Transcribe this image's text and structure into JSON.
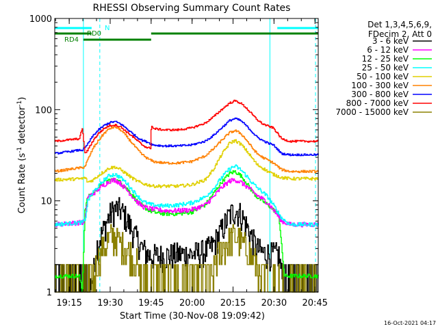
{
  "chart_data": {
    "type": "line",
    "title": "RHESSI Observing Summary Count Rates",
    "xlabel": "Start Time (30-Nov-08 19:09:42)",
    "ylabel_main": "Count Rate (s",
    "ylabel_sup1": "-1",
    "ylabel_mid": " detector",
    "ylabel_sup2": "-1",
    "ylabel_end": ")",
    "yscale": "log",
    "xlim": [
      0,
      96.5
    ],
    "ylim": [
      1,
      1000
    ],
    "x_unit": "minutes after 19:09:42",
    "x_ticks": [
      {
        "x": 5.3,
        "label": "19:15"
      },
      {
        "x": 20.3,
        "label": "19:30"
      },
      {
        "x": 35.3,
        "label": "19:45"
      },
      {
        "x": 50.3,
        "label": "20:00"
      },
      {
        "x": 65.3,
        "label": "20:15"
      },
      {
        "x": 80.3,
        "label": "20:30"
      },
      {
        "x": 95.3,
        "label": "20:45"
      }
    ],
    "y_ticks": [
      {
        "y": 1,
        "label": "1"
      },
      {
        "y": 10,
        "label": "10"
      },
      {
        "y": 100,
        "label": "100"
      },
      {
        "y": 1000,
        "label": "1000"
      }
    ],
    "legend_header": [
      "Det 1,3,4,5,6,9,",
      "FDecim 2, Att 0"
    ],
    "series": [
      {
        "name": "3 - 6 keV",
        "color": "#000000",
        "points": [
          [
            0,
            1
          ],
          [
            10,
            1
          ],
          [
            12,
            1
          ],
          [
            14,
            1.5
          ],
          [
            15,
            3
          ],
          [
            18,
            5
          ],
          [
            20,
            7
          ],
          [
            22,
            8.2
          ],
          [
            24,
            8
          ],
          [
            26,
            6.5
          ],
          [
            28,
            5
          ],
          [
            30,
            3.8
          ],
          [
            32,
            3
          ],
          [
            34,
            2.6
          ],
          [
            35,
            2.5
          ],
          [
            40,
            2.5
          ],
          [
            45,
            2.6
          ],
          [
            50,
            2.6
          ],
          [
            55,
            2.8
          ],
          [
            58,
            3.3
          ],
          [
            61,
            4.8
          ],
          [
            64,
            7
          ],
          [
            66,
            8
          ],
          [
            68,
            7.2
          ],
          [
            70,
            5.5
          ],
          [
            72,
            4
          ],
          [
            74,
            3
          ],
          [
            76,
            2.7
          ],
          [
            79,
            2.6
          ],
          [
            82,
            2.6
          ],
          [
            84,
            1
          ],
          [
            96.5,
            1
          ]
        ]
      },
      {
        "name": "6 - 12 keV",
        "color": "#ff00ff",
        "points": [
          [
            0,
            5.5
          ],
          [
            10,
            5.8
          ],
          [
            11,
            6
          ],
          [
            12,
            11
          ],
          [
            14,
            12
          ],
          [
            16,
            13.5
          ],
          [
            18,
            15
          ],
          [
            20,
            16.5
          ],
          [
            22,
            17
          ],
          [
            24,
            15.5
          ],
          [
            26,
            13.5
          ],
          [
            28,
            11.5
          ],
          [
            30,
            9.8
          ],
          [
            32,
            8.7
          ],
          [
            34,
            8.3
          ],
          [
            36,
            8.1
          ],
          [
            40,
            7.8
          ],
          [
            45,
            7.8
          ],
          [
            50,
            8
          ],
          [
            55,
            9
          ],
          [
            58,
            11
          ],
          [
            61,
            14
          ],
          [
            64,
            16.5
          ],
          [
            66,
            17
          ],
          [
            68,
            16
          ],
          [
            70,
            14.5
          ],
          [
            72,
            13
          ],
          [
            74,
            11.5
          ],
          [
            76,
            10.5
          ],
          [
            78,
            9.5
          ],
          [
            80,
            8
          ],
          [
            83,
            6
          ],
          [
            86,
            5.5
          ],
          [
            96.5,
            5.5
          ]
        ]
      },
      {
        "name": "12 - 25 keV",
        "color": "#00ff00",
        "points": [
          [
            0,
            1.5
          ],
          [
            9,
            1.5
          ],
          [
            10,
            1
          ],
          [
            11,
            8
          ],
          [
            12,
            11
          ],
          [
            14,
            12
          ],
          [
            16,
            14
          ],
          [
            18,
            16
          ],
          [
            20,
            17
          ],
          [
            22,
            17
          ],
          [
            24,
            16
          ],
          [
            26,
            14
          ],
          [
            28,
            12
          ],
          [
            30,
            10
          ],
          [
            32,
            8.8
          ],
          [
            34,
            8
          ],
          [
            36,
            7.5
          ],
          [
            40,
            7.2
          ],
          [
            45,
            7.2
          ],
          [
            50,
            7.5
          ],
          [
            55,
            9
          ],
          [
            58,
            12
          ],
          [
            61,
            16
          ],
          [
            64,
            20
          ],
          [
            66,
            21
          ],
          [
            68,
            19
          ],
          [
            70,
            16
          ],
          [
            72,
            13
          ],
          [
            74,
            11
          ],
          [
            76,
            10
          ],
          [
            78,
            9
          ],
          [
            80,
            8
          ],
          [
            82,
            7
          ],
          [
            84,
            1.5
          ],
          [
            96.5,
            1.5
          ]
        ]
      },
      {
        "name": "25 - 50 keV",
        "color": "#00ffff",
        "points": [
          [
            0,
            5.5
          ],
          [
            10,
            5.8
          ],
          [
            11,
            6
          ],
          [
            12,
            10
          ],
          [
            14,
            12.5
          ],
          [
            16,
            14.5
          ],
          [
            18,
            17
          ],
          [
            20,
            19
          ],
          [
            22,
            19.5
          ],
          [
            24,
            18
          ],
          [
            26,
            16
          ],
          [
            28,
            13.5
          ],
          [
            30,
            11.5
          ],
          [
            32,
            10
          ],
          [
            34,
            9.3
          ],
          [
            36,
            9
          ],
          [
            40,
            8.8
          ],
          [
            45,
            9
          ],
          [
            50,
            9.5
          ],
          [
            55,
            11
          ],
          [
            58,
            13.5
          ],
          [
            61,
            18
          ],
          [
            64,
            22.5
          ],
          [
            66,
            24
          ],
          [
            68,
            22
          ],
          [
            70,
            19
          ],
          [
            72,
            16
          ],
          [
            74,
            14
          ],
          [
            76,
            12.5
          ],
          [
            78,
            11
          ],
          [
            80,
            9
          ],
          [
            83,
            6.5
          ],
          [
            86,
            5.5
          ],
          [
            96.5,
            5.5
          ]
        ]
      },
      {
        "name": "50 - 100 keV",
        "color": "#e0d000",
        "points": [
          [
            0,
            17
          ],
          [
            10,
            17.5
          ],
          [
            11,
            18
          ],
          [
            12,
            16
          ],
          [
            14,
            17
          ],
          [
            16,
            19
          ],
          [
            18,
            21
          ],
          [
            20,
            23
          ],
          [
            22,
            23.5
          ],
          [
            24,
            22
          ],
          [
            26,
            20
          ],
          [
            28,
            18
          ],
          [
            30,
            16.5
          ],
          [
            32,
            15.5
          ],
          [
            34,
            15
          ],
          [
            36,
            14.5
          ],
          [
            40,
            14.5
          ],
          [
            45,
            14.5
          ],
          [
            50,
            15
          ],
          [
            55,
            17
          ],
          [
            58,
            22
          ],
          [
            61,
            32
          ],
          [
            64,
            43
          ],
          [
            66,
            46
          ],
          [
            68,
            42
          ],
          [
            70,
            36
          ],
          [
            72,
            30
          ],
          [
            74,
            25
          ],
          [
            76,
            23
          ],
          [
            78,
            21
          ],
          [
            80,
            19.5
          ],
          [
            83,
            18
          ],
          [
            86,
            17.5
          ],
          [
            96.5,
            17.5
          ]
        ]
      },
      {
        "name": "100 - 300 keV",
        "color": "#ff8000",
        "points": [
          [
            0,
            21
          ],
          [
            9,
            23
          ],
          [
            10,
            23
          ],
          [
            11,
            24
          ],
          [
            12,
            28
          ],
          [
            14,
            38
          ],
          [
            16,
            46
          ],
          [
            18,
            55
          ],
          [
            20,
            62
          ],
          [
            22,
            65
          ],
          [
            24,
            60
          ],
          [
            26,
            52
          ],
          [
            28,
            44
          ],
          [
            30,
            37
          ],
          [
            32,
            32
          ],
          [
            34,
            29
          ],
          [
            36,
            27
          ],
          [
            40,
            26
          ],
          [
            45,
            26
          ],
          [
            50,
            27
          ],
          [
            55,
            31
          ],
          [
            58,
            37
          ],
          [
            61,
            46
          ],
          [
            64,
            56
          ],
          [
            66,
            59
          ],
          [
            68,
            55
          ],
          [
            70,
            47
          ],
          [
            72,
            39
          ],
          [
            74,
            33
          ],
          [
            76,
            30
          ],
          [
            78,
            28
          ],
          [
            80,
            26
          ],
          [
            83,
            22
          ],
          [
            86,
            21
          ],
          [
            96.5,
            21
          ]
        ]
      },
      {
        "name": "300 - 800 keV",
        "color": "#0000ff",
        "points": [
          [
            0,
            33
          ],
          [
            9,
            36
          ],
          [
            10,
            36
          ],
          [
            11,
            38
          ],
          [
            12,
            42
          ],
          [
            14,
            52
          ],
          [
            16,
            60
          ],
          [
            18,
            67
          ],
          [
            20,
            72
          ],
          [
            22,
            74
          ],
          [
            24,
            70
          ],
          [
            26,
            63
          ],
          [
            28,
            56
          ],
          [
            30,
            50
          ],
          [
            32,
            46
          ],
          [
            34,
            44
          ],
          [
            36,
            41
          ],
          [
            40,
            40
          ],
          [
            45,
            40
          ],
          [
            50,
            41
          ],
          [
            55,
            45
          ],
          [
            58,
            52
          ],
          [
            61,
            63
          ],
          [
            64,
            76
          ],
          [
            66,
            80
          ],
          [
            68,
            76
          ],
          [
            70,
            67
          ],
          [
            72,
            58
          ],
          [
            74,
            50
          ],
          [
            76,
            46
          ],
          [
            78,
            43
          ],
          [
            80,
            41
          ],
          [
            83,
            33
          ],
          [
            86,
            32
          ],
          [
            96.5,
            32
          ]
        ]
      },
      {
        "name": "800 - 7000 keV",
        "color": "#ff0000",
        "points": [
          [
            0,
            45
          ],
          [
            9,
            48
          ],
          [
            10,
            63
          ],
          [
            11,
            33
          ],
          [
            12,
            36
          ],
          [
            14,
            46
          ],
          [
            16,
            55
          ],
          [
            18,
            62
          ],
          [
            20,
            67
          ],
          [
            22,
            68
          ],
          [
            24,
            65
          ],
          [
            26,
            58
          ],
          [
            28,
            52
          ],
          [
            30,
            46
          ],
          [
            32,
            41
          ],
          [
            34,
            38
          ],
          [
            35,
            38
          ],
          [
            35.3,
            68
          ],
          [
            36,
            62
          ],
          [
            40,
            60
          ],
          [
            45,
            60
          ],
          [
            50,
            63
          ],
          [
            55,
            71
          ],
          [
            58,
            83
          ],
          [
            61,
            100
          ],
          [
            64,
            118
          ],
          [
            66,
            125
          ],
          [
            68,
            118
          ],
          [
            70,
            105
          ],
          [
            72,
            90
          ],
          [
            74,
            78
          ],
          [
            76,
            70
          ],
          [
            78,
            66
          ],
          [
            80,
            63
          ],
          [
            83,
            48
          ],
          [
            86,
            45
          ],
          [
            96.5,
            45
          ]
        ]
      },
      {
        "name": "7000 - 15000 keV",
        "color": "#8b8000",
        "points": [
          [
            0,
            1
          ],
          [
            14,
            1
          ],
          [
            15,
            2
          ],
          [
            17,
            2.8
          ],
          [
            19,
            3.5
          ],
          [
            20,
            4
          ],
          [
            22,
            4
          ],
          [
            24,
            3.5
          ],
          [
            26,
            3
          ],
          [
            28,
            2.5
          ],
          [
            30,
            2
          ],
          [
            32,
            1
          ],
          [
            57,
            1
          ],
          [
            59,
            2.3
          ],
          [
            61,
            3
          ],
          [
            63,
            3.5
          ],
          [
            65,
            4
          ],
          [
            67,
            4
          ],
          [
            68,
            3.5
          ],
          [
            70,
            3
          ],
          [
            72,
            2.5
          ],
          [
            74,
            2
          ],
          [
            76,
            1
          ],
          [
            96.5,
            1
          ]
        ]
      }
    ],
    "annotations": {
      "label_n": "N",
      "label_rd0": "RD0",
      "label_rd4": "RD4",
      "timestamp": "16-Oct-2021 04:17",
      "night_bar_color": "#00ffff",
      "decim_bar_color": "#008000",
      "night_bars": [
        [
          0,
          13.5
        ],
        [
          81.5,
          96.5
        ]
      ],
      "saa_bars_rd0": [
        [
          0,
          13.5
        ],
        [
          35.3,
          96.5
        ]
      ],
      "saa_bars_rd4": [
        [
          10.5,
          35.3
        ]
      ],
      "cyan_vertical_solid": [
        10.5,
        78.8
      ],
      "cyan_vertical_dashed": [
        16.5,
        95.5
      ]
    }
  }
}
